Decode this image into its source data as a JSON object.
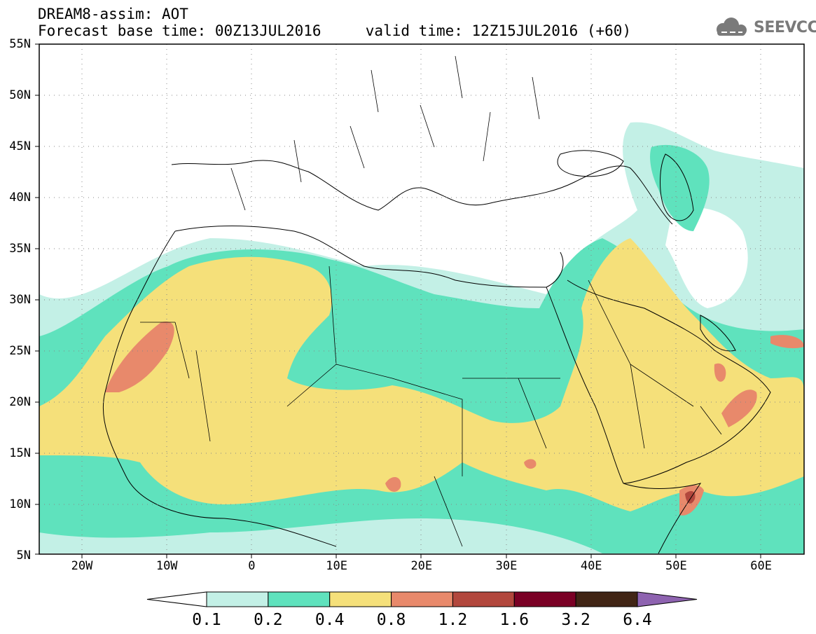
{
  "title": {
    "line1": "DREAM8-assim: AOT",
    "line2": "Forecast base time: 00Z13JUL2016     valid time: 12Z15JUL2016 (+60)"
  },
  "logo": {
    "text": "SEEVCCC",
    "icon": "cloud-icon"
  },
  "map": {
    "lat_labels": [
      "55N",
      "50N",
      "45N",
      "40N",
      "35N",
      "30N",
      "25N",
      "20N",
      "15N",
      "10N",
      "5N"
    ],
    "lon_labels": [
      "20W",
      "10W",
      "0",
      "10E",
      "20E",
      "30E",
      "40E",
      "50E",
      "60E"
    ],
    "extent": {
      "lon": [
        -25,
        65
      ],
      "lat": [
        5,
        55
      ]
    }
  },
  "colorbar": {
    "labels": [
      "0.1",
      "0.2",
      "0.4",
      "0.8",
      "1.2",
      "1.6",
      "3.2",
      "6.4"
    ],
    "colors": [
      "#ffffff",
      "#c3f0e6",
      "#5fe2bd",
      "#f5e07a",
      "#e8896b",
      "#b2473d",
      "#7a0025",
      "#412515",
      "#8e63b0"
    ]
  }
}
